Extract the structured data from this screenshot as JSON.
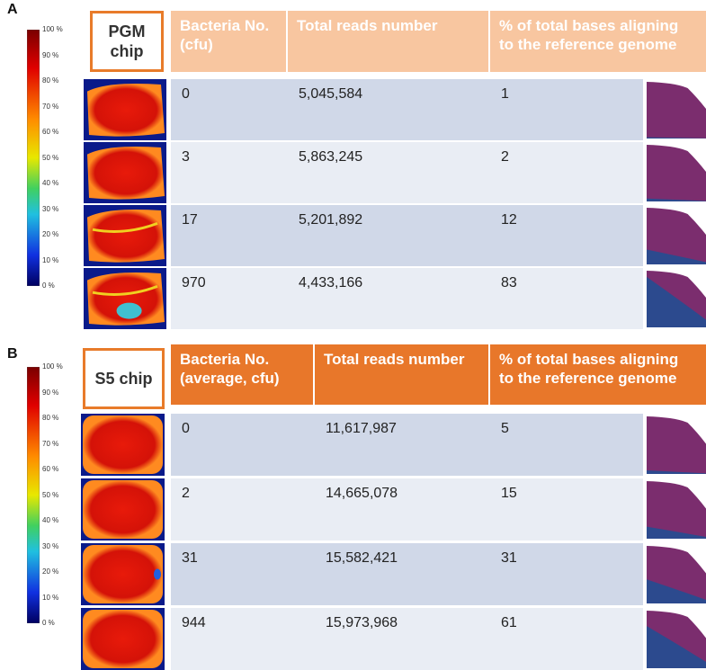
{
  "panels": [
    {
      "label": "A",
      "chip": "PGM chip",
      "colorbar_ticks": [
        "100 %",
        "90 %",
        "80 %",
        "70 %",
        "60 %",
        "50 %",
        "40 %",
        "30 %",
        "20 %",
        "10 %",
        "0 %"
      ],
      "headers": [
        "Bacteria No. (cfu)",
        "Total reads number",
        "% of total bases aligning to the reference genome"
      ],
      "rows": [
        [
          "0",
          "5,045,584",
          "1"
        ],
        [
          "3",
          "5,863,245",
          "2"
        ],
        [
          "17",
          "5,201,892",
          "12"
        ],
        [
          "970",
          "4,433,166",
          "83"
        ]
      ]
    },
    {
      "label": "B",
      "chip": "S5 chip",
      "colorbar_ticks": [
        "100 %",
        "90 %",
        "80 %",
        "70 %",
        "60 %",
        "50 %",
        "40 %",
        "30 %",
        "20 %",
        "10 %",
        "0 %"
      ],
      "headers": [
        "Bacteria No. (average, cfu)",
        "Total reads number",
        "% of total bases aligning to the reference genome"
      ],
      "rows": [
        [
          "0",
          "11,617,987",
          "5"
        ],
        [
          "2",
          "14,665,078",
          "15"
        ],
        [
          "31",
          "15,582,421",
          "31"
        ],
        [
          "944",
          "15,973,968",
          "61"
        ]
      ]
    }
  ]
}
